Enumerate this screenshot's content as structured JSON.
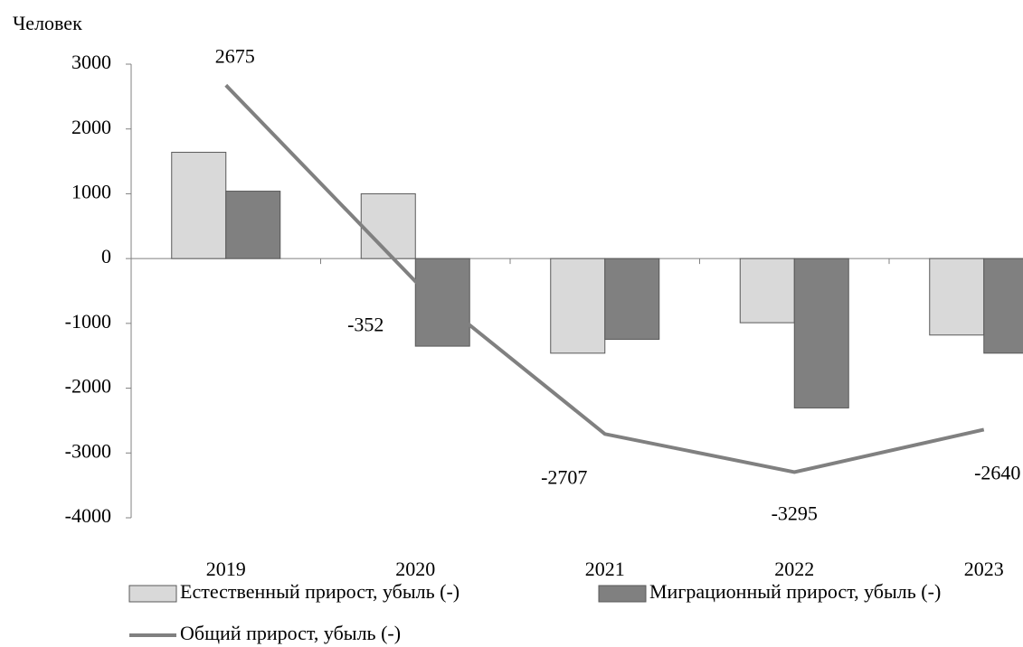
{
  "chart_data": {
    "type": "bar_line",
    "ylabel": "Человек",
    "categories": [
      "2019",
      "2020",
      "2021",
      "2022",
      "2023"
    ],
    "series": [
      {
        "name": "Естественный прирост, убыль (-)",
        "type": "bar",
        "color": "#d9d9d9",
        "values": [
          1640,
          1000,
          -1460,
          -990,
          -1180
        ]
      },
      {
        "name": "Миграционный прирост, убыль (-)",
        "type": "bar",
        "color": "#808080",
        "values": [
          1040,
          -1352,
          -1247,
          -2305,
          -1460
        ]
      },
      {
        "name": "Общий прирост, убыль (-)",
        "type": "line",
        "color": "#808080",
        "values": [
          2675,
          -352,
          -2707,
          -3295,
          -2640
        ]
      }
    ],
    "ylim": [
      -4000,
      3000
    ],
    "yticks": [
      -4000,
      -3000,
      -2000,
      -1000,
      0,
      1000,
      2000,
      3000
    ]
  }
}
